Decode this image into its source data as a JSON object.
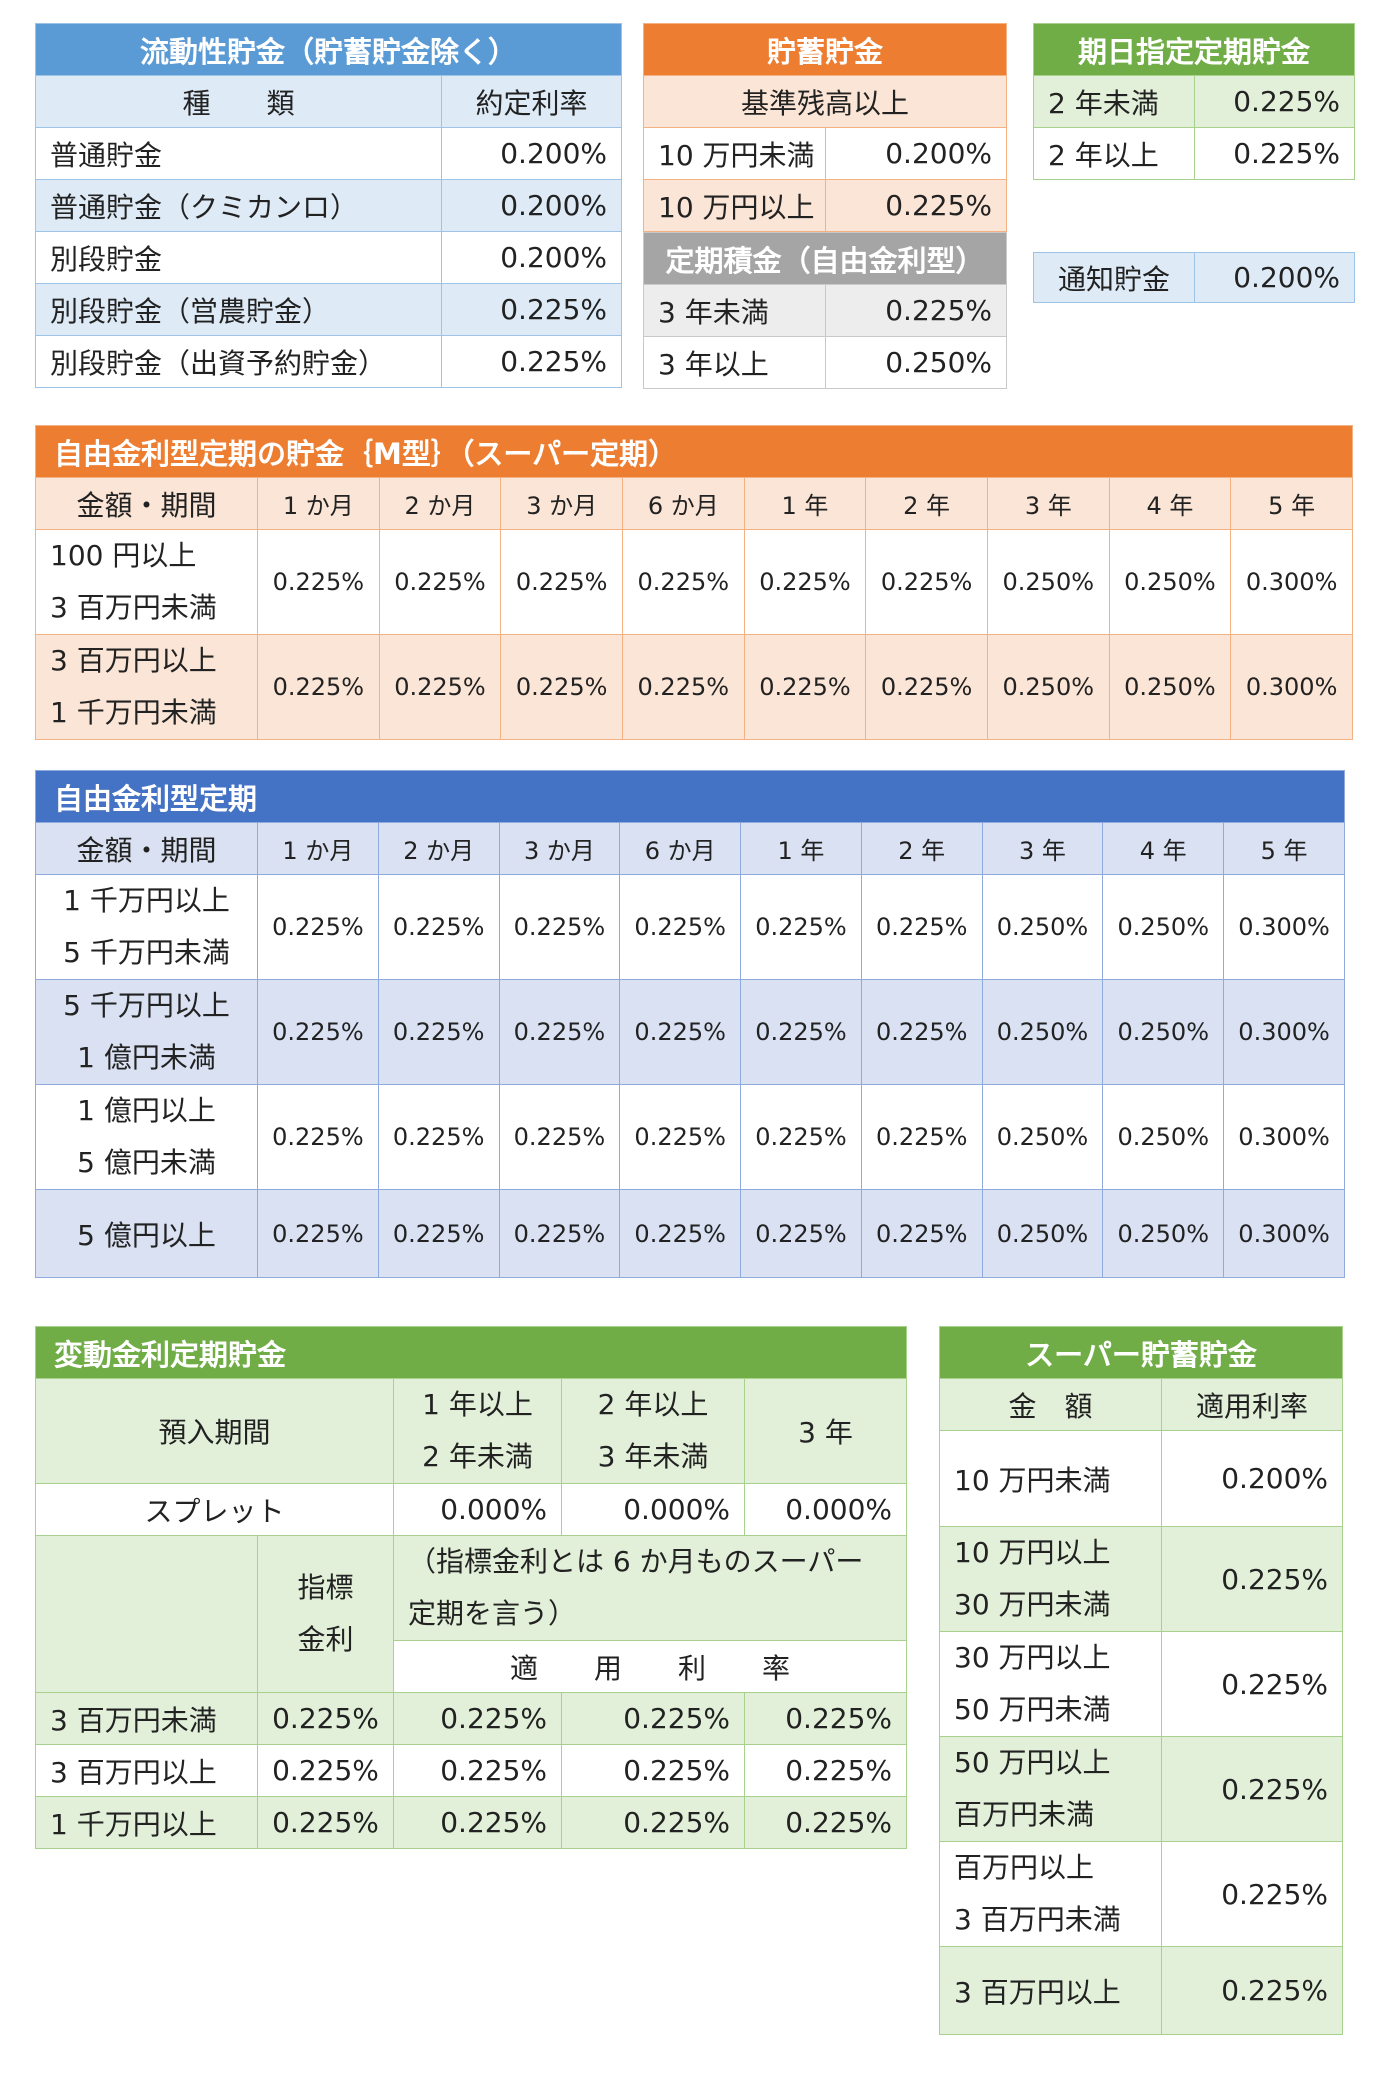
{
  "liquid": {
    "title": "流動性貯金（貯蓄貯金除く）",
    "col_type": "種　　類",
    "col_rate": "約定利率",
    "rows": [
      {
        "name": "普通貯金",
        "rate": "0.200%"
      },
      {
        "name": "普通貯金（クミカンロ）",
        "rate": "0.200%"
      },
      {
        "name": "別段貯金",
        "rate": "0.200%"
      },
      {
        "name": "別段貯金（営農貯金）",
        "rate": "0.225%"
      },
      {
        "name": "別段貯金（出資予約貯金）",
        "rate": "0.225%"
      }
    ]
  },
  "savings": {
    "title": "貯蓄貯金",
    "sub": "基準残高以上",
    "rows": [
      {
        "name": "10 万円未満",
        "rate": "0.200%"
      },
      {
        "name": "10 万円以上",
        "rate": "0.225%"
      }
    ]
  },
  "installment": {
    "title": "定期積金（自由金利型）",
    "rows": [
      {
        "name": "3 年未満",
        "rate": "0.225%"
      },
      {
        "name": "3 年以上",
        "rate": "0.250%"
      }
    ]
  },
  "date_fixed": {
    "title": "期日指定定期貯金",
    "rows": [
      {
        "name": "2 年未満",
        "rate": "0.225%"
      },
      {
        "name": "2 年以上",
        "rate": "0.225%"
      }
    ]
  },
  "notice": {
    "name": "通知貯金",
    "rate": "0.200%"
  },
  "m_type": {
    "title": "自由金利型定期の貯金｛M型｝（スーパー定期）",
    "head": [
      "金額・期間",
      "1 か月",
      "2 か月",
      "3 か月",
      "6 か月",
      "1 年",
      "2 年",
      "3 年",
      "4 年",
      "5 年"
    ],
    "rows": [
      {
        "amount": "100 円以上\n3 百万円未満",
        "rates": [
          "0.225%",
          "0.225%",
          "0.225%",
          "0.225%",
          "0.225%",
          "0.225%",
          "0.250%",
          "0.250%",
          "0.300%"
        ]
      },
      {
        "amount": "3 百万円以上\n1 千万円未満",
        "rates": [
          "0.225%",
          "0.225%",
          "0.225%",
          "0.225%",
          "0.225%",
          "0.225%",
          "0.250%",
          "0.250%",
          "0.300%"
        ]
      }
    ]
  },
  "free_fixed": {
    "title": "自由金利型定期",
    "head": [
      "金額・期間",
      "1 か月",
      "2 か月",
      "3 か月",
      "6 か月",
      "1 年",
      "2 年",
      "3 年",
      "4 年",
      "5 年"
    ],
    "rows": [
      {
        "amount": "1 千万円以上\n5 千万円未満",
        "rates": [
          "0.225%",
          "0.225%",
          "0.225%",
          "0.225%",
          "0.225%",
          "0.225%",
          "0.250%",
          "0.250%",
          "0.300%"
        ]
      },
      {
        "amount": "5 千万円以上\n1 億円未満",
        "rates": [
          "0.225%",
          "0.225%",
          "0.225%",
          "0.225%",
          "0.225%",
          "0.225%",
          "0.250%",
          "0.250%",
          "0.300%"
        ]
      },
      {
        "amount": "1 億円以上\n5 億円未満",
        "rates": [
          "0.225%",
          "0.225%",
          "0.225%",
          "0.225%",
          "0.225%",
          "0.225%",
          "0.250%",
          "0.250%",
          "0.300%"
        ]
      },
      {
        "amount": "5 億円以上",
        "rates": [
          "0.225%",
          "0.225%",
          "0.225%",
          "0.225%",
          "0.225%",
          "0.225%",
          "0.250%",
          "0.250%",
          "0.300%"
        ]
      }
    ]
  },
  "variable": {
    "title": "変動金利定期貯金",
    "period_label": "預入期間",
    "periods": [
      "1 年以上\n2 年未満",
      "2 年以上\n3 年未満",
      "3 年"
    ],
    "spread_label": "スプレット",
    "spreads": [
      "0.000%",
      "0.000%",
      "0.000%"
    ],
    "index_label": "指標\n金利",
    "index_note": "（指標金利とは 6 か月ものスーパー\n定期を言う）",
    "applied_label": "適　　用　　利　　率",
    "rows": [
      {
        "amount": "3 百万円未満",
        "index": "0.225%",
        "rates": [
          "0.225%",
          "0.225%",
          "0.225%"
        ]
      },
      {
        "amount": "3 百万円以上",
        "index": "0.225%",
        "rates": [
          "0.225%",
          "0.225%",
          "0.225%"
        ]
      },
      {
        "amount": "1 千万円以上",
        "index": "0.225%",
        "rates": [
          "0.225%",
          "0.225%",
          "0.225%"
        ]
      }
    ]
  },
  "super_savings": {
    "title": "スーパー貯蓄貯金",
    "col_amount": "金　額",
    "col_rate": "適用利率",
    "rows": [
      {
        "amount": "10 万円未満",
        "rate": "0.200%"
      },
      {
        "amount": "10 万円以上\n30 万円未満",
        "rate": "0.225%"
      },
      {
        "amount": "30 万円以上\n50 万円未満",
        "rate": "0.225%"
      },
      {
        "amount": "50 万円以上\n百万円未満",
        "rate": "0.225%"
      },
      {
        "amount": "百万円以上\n3 百万円未満",
        "rate": "0.225%"
      },
      {
        "amount": "3 百万円以上",
        "rate": "0.225%"
      }
    ]
  }
}
